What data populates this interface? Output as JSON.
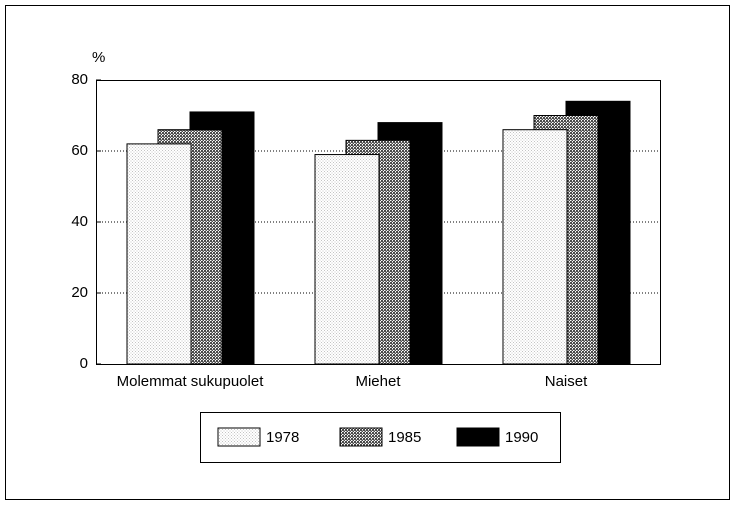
{
  "chart_data": {
    "type": "bar",
    "y_label": "%",
    "categories": [
      "Molemmat sukupuolet",
      "Miehet",
      "Naiset"
    ],
    "series": [
      {
        "name": "1978",
        "color": "#c4c4c4",
        "values": [
          62,
          59,
          66
        ]
      },
      {
        "name": "1985",
        "color": "#4a4a4a",
        "values": [
          66,
          63,
          70
        ]
      },
      {
        "name": "1990",
        "color": "#000000",
        "values": [
          71,
          68,
          74
        ]
      }
    ],
    "ylim": [
      0,
      80
    ],
    "yticks": [
      0,
      20,
      40,
      60,
      80
    ],
    "grid": true
  }
}
